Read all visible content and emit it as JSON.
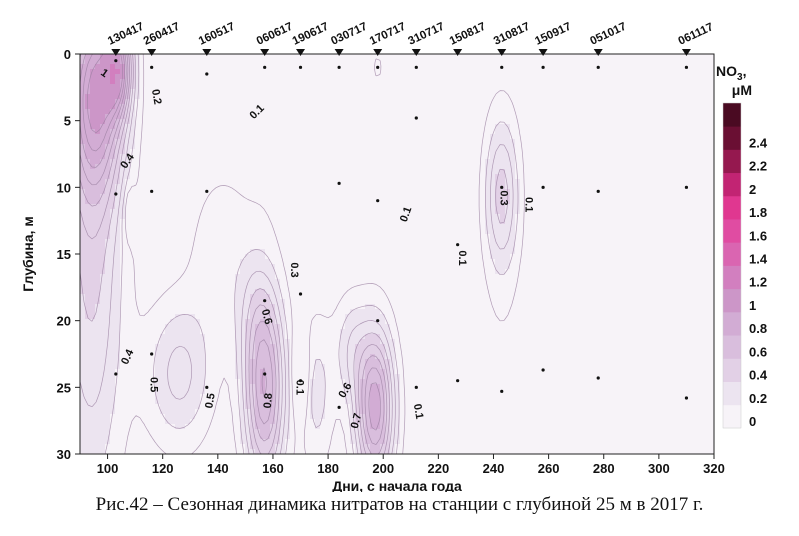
{
  "chart_data": {
    "type": "heatmap",
    "title": "",
    "xlabel": "Дни, с начала года",
    "ylabel": "Глубина, м",
    "xlim": [
      90,
      320
    ],
    "ylim": [
      30,
      0
    ],
    "xticks": [
      "100",
      "120",
      "140",
      "160",
      "180",
      "200",
      "220",
      "240",
      "260",
      "280",
      "300",
      "320"
    ],
    "xtick_values": [
      100,
      120,
      140,
      160,
      180,
      200,
      220,
      240,
      260,
      280,
      300,
      320
    ],
    "yticks": [
      "0",
      "5",
      "10",
      "15",
      "20",
      "25",
      "30"
    ],
    "ytick_values": [
      0,
      5,
      10,
      15,
      20,
      25,
      30
    ],
    "colorbar": {
      "label_line1": "NO",
      "label_sub": "3",
      "label_comma": ",",
      "label_line2": "μM",
      "ticks": [
        "0",
        "0.2",
        "0.4",
        "0.6",
        "0.8",
        "1",
        "1.2",
        "1.4",
        "1.6",
        "1.8",
        "2",
        "2.2",
        "2.4"
      ],
      "tick_values": [
        0,
        0.2,
        0.4,
        0.6,
        0.8,
        1,
        1.2,
        1.4,
        1.6,
        1.8,
        2,
        2.2,
        2.4
      ],
      "colors": [
        "#f7f3f8",
        "#ece4f0",
        "#e2d0e6",
        "#d9bedd",
        "#d2acd4",
        "#cc96c8",
        "#d27fbf",
        "#da65b1",
        "#e04ca2",
        "#e03790",
        "#c22473",
        "#95184f",
        "#6a0f33",
        "#4a0a22"
      ]
    },
    "stations": [
      {
        "label": "130417",
        "day": 103
      },
      {
        "label": "260417",
        "day": 116
      },
      {
        "label": "160517",
        "day": 136
      },
      {
        "label": "060617",
        "day": 157
      },
      {
        "label": "190617",
        "day": 170
      },
      {
        "label": "030717",
        "day": 184
      },
      {
        "label": "170717",
        "day": 198
      },
      {
        "label": "310717",
        "day": 212
      },
      {
        "label": "150817",
        "day": 227
      },
      {
        "label": "310817",
        "day": 243
      },
      {
        "label": "150917",
        "day": 258
      },
      {
        "label": "051017",
        "day": 278
      },
      {
        "label": "061117",
        "day": 310
      }
    ],
    "sample_points": [
      {
        "day": 103,
        "depth": 0.5
      },
      {
        "day": 103,
        "depth": 10.5
      },
      {
        "day": 103,
        "depth": 24
      },
      {
        "day": 116,
        "depth": 1
      },
      {
        "day": 116,
        "depth": 10.3
      },
      {
        "day": 116,
        "depth": 22.5
      },
      {
        "day": 136,
        "depth": 1.5
      },
      {
        "day": 136,
        "depth": 10.3
      },
      {
        "day": 136,
        "depth": 25
      },
      {
        "day": 157,
        "depth": 1
      },
      {
        "day": 157,
        "depth": 18.5
      },
      {
        "day": 157,
        "depth": 24
      },
      {
        "day": 170,
        "depth": 1
      },
      {
        "day": 170,
        "depth": 18
      },
      {
        "day": 170,
        "depth": 24.5
      },
      {
        "day": 184,
        "depth": 1
      },
      {
        "day": 184,
        "depth": 9.7
      },
      {
        "day": 184,
        "depth": 26.5
      },
      {
        "day": 198,
        "depth": 1
      },
      {
        "day": 198,
        "depth": 11
      },
      {
        "day": 198,
        "depth": 20
      },
      {
        "day": 212,
        "depth": 1
      },
      {
        "day": 212,
        "depth": 4.8
      },
      {
        "day": 212,
        "depth": 25
      },
      {
        "day": 227,
        "depth": 14.3
      },
      {
        "day": 227,
        "depth": 24.5
      },
      {
        "day": 243,
        "depth": 1
      },
      {
        "day": 243,
        "depth": 10
      },
      {
        "day": 243,
        "depth": 25.3
      },
      {
        "day": 258,
        "depth": 1
      },
      {
        "day": 258,
        "depth": 10
      },
      {
        "day": 258,
        "depth": 23.7
      },
      {
        "day": 278,
        "depth": 1
      },
      {
        "day": 278,
        "depth": 10.3
      },
      {
        "day": 278,
        "depth": 24.3
      },
      {
        "day": 310,
        "depth": 1
      },
      {
        "day": 310,
        "depth": 10
      },
      {
        "day": 310,
        "depth": 25.8
      }
    ],
    "blobs": [
      {
        "day": 94,
        "depth": 14,
        "rx": 12,
        "ry": 20,
        "amp": 0.42
      },
      {
        "day": 96,
        "depth": 3,
        "rx": 10,
        "ry": 7,
        "amp": 0.75
      },
      {
        "day": 104,
        "depth": 1,
        "rx": 5,
        "ry": 3.5,
        "amp": 0.65
      },
      {
        "day": 126,
        "depth": 24,
        "rx": 12,
        "ry": 5.5,
        "amp": 0.32
      },
      {
        "day": 140,
        "depth": 15,
        "rx": 11,
        "ry": 6,
        "amp": 0.14
      },
      {
        "day": 157,
        "depth": 25,
        "rx": 7.5,
        "ry": 7.5,
        "amp": 0.78
      },
      {
        "day": 152,
        "depth": 19,
        "rx": 7,
        "ry": 5,
        "amp": 0.12
      },
      {
        "day": 176,
        "depth": 25.5,
        "rx": 6,
        "ry": 6,
        "amp": 0.22
      },
      {
        "day": 197,
        "depth": 26.5,
        "rx": 7,
        "ry": 6,
        "amp": 0.85
      },
      {
        "day": 188,
        "depth": 22,
        "rx": 6,
        "ry": 4,
        "amp": 0.22
      },
      {
        "day": 165,
        "depth": 9,
        "rx": 22,
        "ry": 4,
        "amp": 0.06
      },
      {
        "day": 243,
        "depth": 10.5,
        "rx": 6,
        "ry": 5.5,
        "amp": 0.35
      },
      {
        "day": 243,
        "depth": 13,
        "rx": 8,
        "ry": 11,
        "amp": 0.09
      },
      {
        "day": 212,
        "depth": 14,
        "rx": 1.8,
        "ry": 1.3,
        "amp": 0.08
      },
      {
        "day": 108,
        "depth": 12,
        "rx": 2,
        "ry": 2,
        "amp": -0.2
      },
      {
        "day": 170,
        "depth": 24,
        "rx": 2.5,
        "ry": 3,
        "amp": -0.35
      },
      {
        "day": 198,
        "depth": 1,
        "rx": 2,
        "ry": 1.3,
        "amp": 0.12
      },
      {
        "day": 250,
        "depth": 28,
        "rx": 30,
        "ry": 6,
        "amp": 0.05
      }
    ],
    "contour_labels": [
      {
        "text": "1",
        "day": 99,
        "depth": 1.4,
        "rot": 35
      },
      {
        "text": "0.2",
        "day": 118,
        "depth": 3.2,
        "rot": 80
      },
      {
        "text": "0.1",
        "day": 154,
        "depth": 4.3,
        "rot": -45
      },
      {
        "text": "0.4",
        "day": 107,
        "depth": 8,
        "rot": -55
      },
      {
        "text": "0.3",
        "day": 244,
        "depth": 10.8,
        "rot": 90
      },
      {
        "text": "0.1",
        "day": 253,
        "depth": 11.3,
        "rot": 90
      },
      {
        "text": "0.1",
        "day": 208,
        "depth": 12,
        "rot": -70
      },
      {
        "text": "0.1",
        "day": 229,
        "depth": 15.3,
        "rot": 90
      },
      {
        "text": "0.3",
        "day": 168,
        "depth": 16.2,
        "rot": 90
      },
      {
        "text": "0.6",
        "day": 158,
        "depth": 19.7,
        "rot": 75
      },
      {
        "text": "0.4",
        "day": 107,
        "depth": 22.7,
        "rot": -65
      },
      {
        "text": "0.5",
        "day": 117,
        "depth": 24.8,
        "rot": 90
      },
      {
        "text": "0.1",
        "day": 170,
        "depth": 25,
        "rot": 90
      },
      {
        "text": "0.6",
        "day": 186,
        "depth": 25.2,
        "rot": -60
      },
      {
        "text": "0.5",
        "day": 137,
        "depth": 26,
        "rot": -80
      },
      {
        "text": "0.8",
        "day": 158,
        "depth": 26,
        "rot": -85
      },
      {
        "text": "0.7",
        "day": 190,
        "depth": 27.5,
        "rot": -75
      },
      {
        "text": "0.1",
        "day": 213,
        "depth": 26.8,
        "rot": 80
      }
    ]
  },
  "caption": "Рис.42 – Сезонная динамика нитратов на станции с глубиной 25 м в 2017 г."
}
